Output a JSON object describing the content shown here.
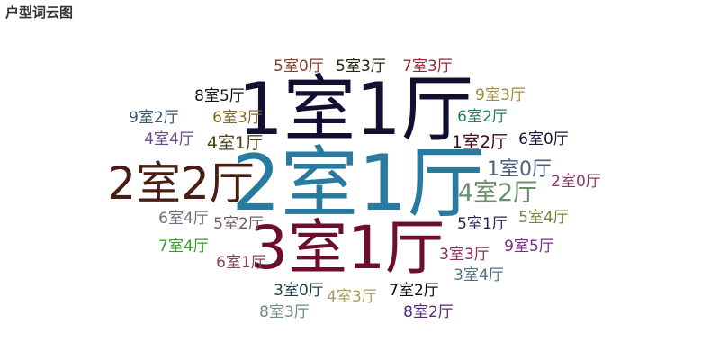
{
  "chart_data": {
    "type": "wordcloud",
    "title": "户型词云图",
    "words": [
      {
        "text": "2室1厅",
        "weight": 100,
        "color": "#2a7a9f"
      },
      {
        "text": "1室1厅",
        "weight": 90,
        "color": "#121030"
      },
      {
        "text": "3室1厅",
        "weight": 82,
        "color": "#6b0f2b"
      },
      {
        "text": "2室2厅",
        "weight": 65,
        "color": "#4a1d12"
      },
      {
        "text": "4室2厅",
        "weight": 35,
        "color": "#6b8f69"
      },
      {
        "text": "1室0厅",
        "weight": 30,
        "color": "#4e627f"
      },
      {
        "text": "1室2厅",
        "weight": 25,
        "color": "#3d0a1c"
      },
      {
        "text": "4室1厅",
        "weight": 25,
        "color": "#4d4114"
      },
      {
        "text": "5室2厅",
        "weight": 22,
        "color": "#6e5e63"
      },
      {
        "text": "8室5厅",
        "weight": 22,
        "color": "#111111"
      },
      {
        "text": "5室3厅",
        "weight": 22,
        "color": "#24240f"
      },
      {
        "text": "7室3厅",
        "weight": 22,
        "color": "#9c2533"
      },
      {
        "text": "5室0厅",
        "weight": 22,
        "color": "#8b3c2a"
      },
      {
        "text": "9室3厅",
        "weight": 22,
        "color": "#a08b3a"
      },
      {
        "text": "6室2厅",
        "weight": 22,
        "color": "#2a7d62"
      },
      {
        "text": "9室2厅",
        "weight": 22,
        "color": "#3a5a6e"
      },
      {
        "text": "6室3厅",
        "weight": 22,
        "color": "#7f6a2d"
      },
      {
        "text": "4室4厅",
        "weight": 22,
        "color": "#6b4a8a"
      },
      {
        "text": "6室0厅",
        "weight": 22,
        "color": "#1e1640"
      },
      {
        "text": "2室0厅",
        "weight": 22,
        "color": "#8a3a64"
      },
      {
        "text": "6室4厅",
        "weight": 22,
        "color": "#6e6e7e"
      },
      {
        "text": "5室1厅",
        "weight": 22,
        "color": "#2b2458"
      },
      {
        "text": "5室4厅",
        "weight": 22,
        "color": "#7e8244"
      },
      {
        "text": "7室4厅",
        "weight": 22,
        "color": "#3a9e2a"
      },
      {
        "text": "6室1厅",
        "weight": 22,
        "color": "#8a4458"
      },
      {
        "text": "3室3厅",
        "weight": 22,
        "color": "#8a2e5a"
      },
      {
        "text": "9室5厅",
        "weight": 22,
        "color": "#7a2d8a"
      },
      {
        "text": "3室4厅",
        "weight": 22,
        "color": "#4e7484"
      },
      {
        "text": "3室0厅",
        "weight": 22,
        "color": "#1e3f4a"
      },
      {
        "text": "4室3厅",
        "weight": 22,
        "color": "#a09e5a"
      },
      {
        "text": "7室2厅",
        "weight": 22,
        "color": "#111111"
      },
      {
        "text": "8室3厅",
        "weight": 22,
        "color": "#6e8e82"
      },
      {
        "text": "8室2厅",
        "weight": 22,
        "color": "#5a2a7a"
      }
    ]
  }
}
